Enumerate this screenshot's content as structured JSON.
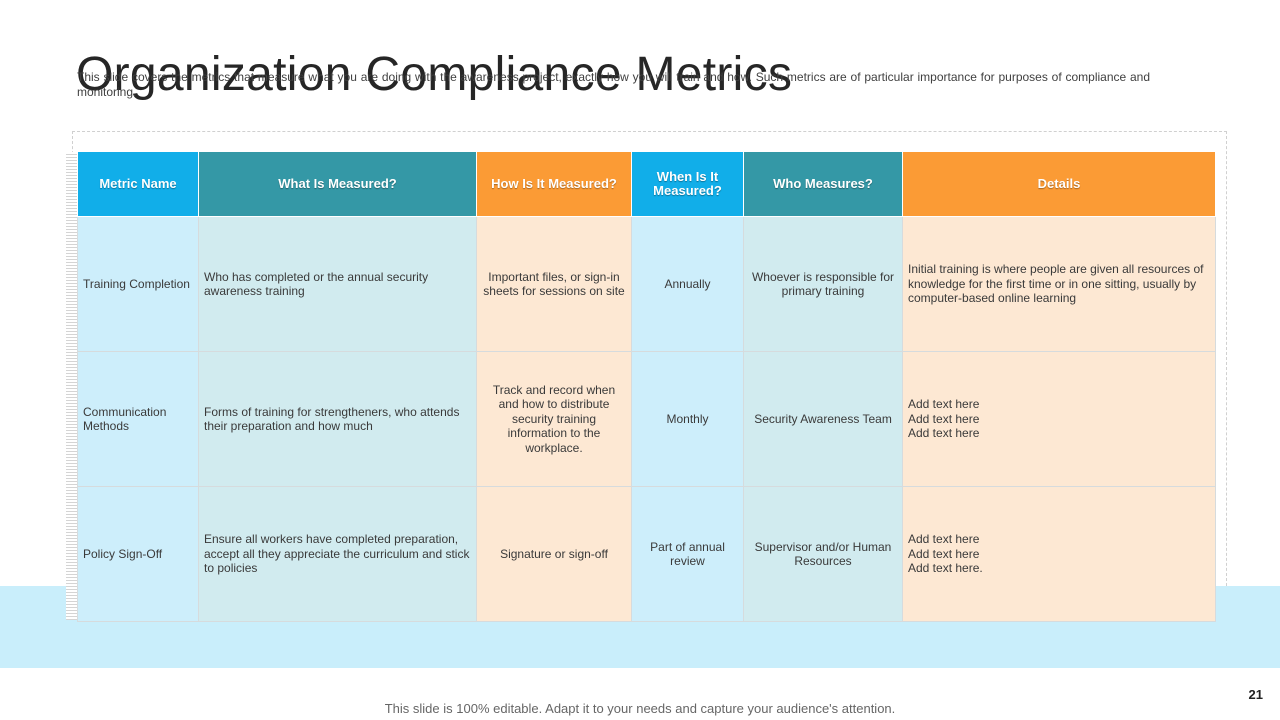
{
  "slide": {
    "title": "Organization Compliance Metrics",
    "subtitle": "This slide covers the metrics that measure what you are doing with the awareness project, exactly how you will train and how. Such metrics are of particular importance for purposes of compliance and monitoring.",
    "footer": "This slide is 100% editable. Adapt it to your needs and capture your audience's attention.",
    "page_number": "21"
  },
  "table": {
    "headers": [
      "Metric Name",
      "What Is Measured?",
      "How Is It Measured?",
      "When Is It Measured?",
      "Who Measures?",
      "Details"
    ],
    "rows": [
      {
        "metric": "Training Completion",
        "what": "Who has completed or the annual security awareness training",
        "how": "Important files, or sign-in sheets for sessions on site",
        "when": "Annually",
        "who": "Whoever is responsible for primary training",
        "details": [
          "Initial training is where people are given all resources of knowledge for the first time or in one sitting, usually by computer-based online learning"
        ]
      },
      {
        "metric": "Communication Methods",
        "what": "Forms of training for strengtheners, who attends their preparation and how much",
        "how": "Track and record when and how to distribute security training information to the workplace.",
        "when": "Monthly",
        "who": "Security Awareness Team",
        "details": [
          "Add text here",
          "Add text here",
          "Add text here"
        ]
      },
      {
        "metric": "Policy Sign-Off",
        "what": "Ensure all workers have completed preparation, accept all they appreciate the curriculum and stick to policies",
        "how": "Signature or sign-off",
        "when": "Part of annual review",
        "who": "Supervisor and/or Human Resources",
        "details": [
          "Add text here",
          "Add text here",
          "Add text here."
        ]
      }
    ]
  },
  "colors": {
    "header_blue": "#11aee9",
    "header_teal": "#3498a6",
    "header_orange": "#fb9b35",
    "cell_blue": "#cdeefb",
    "cell_teal": "#d1ebef",
    "cell_peach": "#fde8d3",
    "band": "#c9eefb"
  }
}
